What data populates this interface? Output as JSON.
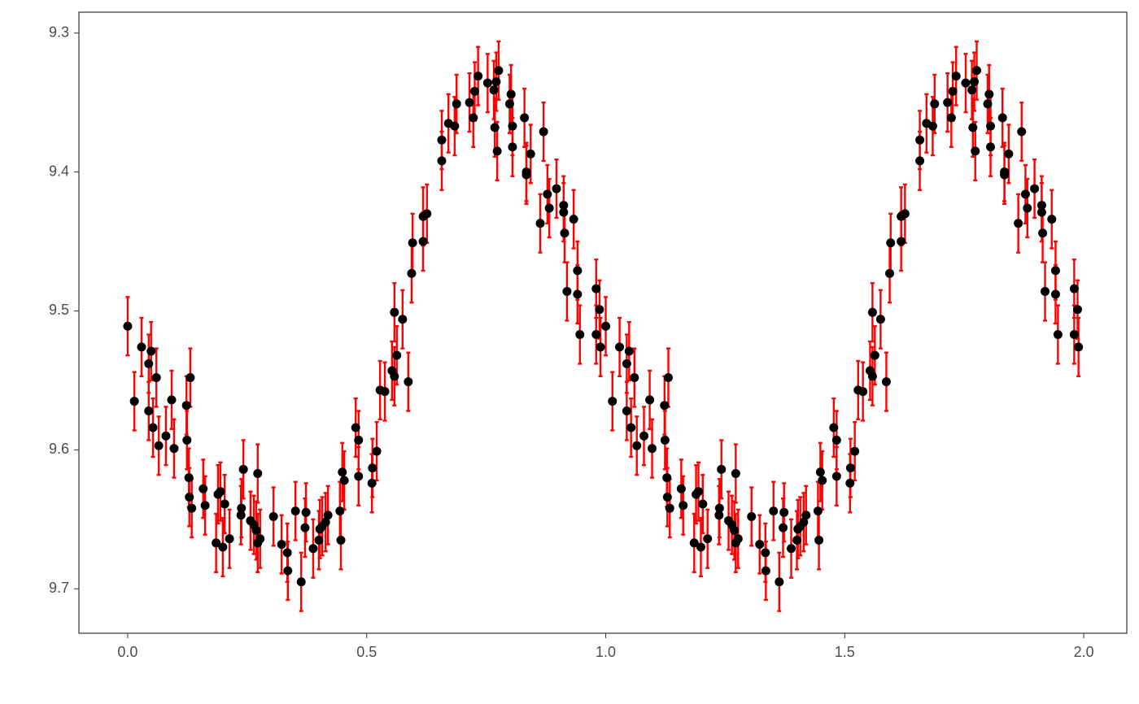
{
  "chart_data": {
    "type": "errorbar_scatter",
    "x": [
      0.0,
      0.014,
      0.029,
      0.044,
      0.044,
      0.049,
      0.053,
      0.06,
      0.065,
      0.08,
      0.092,
      0.097,
      0.123,
      0.124,
      0.128,
      0.129,
      0.131,
      0.134,
      0.158,
      0.162,
      0.185,
      0.189,
      0.194,
      0.199,
      0.203,
      0.213,
      0.237,
      0.238,
      0.242,
      0.257,
      0.264,
      0.269,
      0.272,
      0.272,
      0.277,
      0.305,
      0.322,
      0.334,
      0.335,
      0.351,
      0.363,
      0.371,
      0.373,
      0.388,
      0.4,
      0.402,
      0.407,
      0.414,
      0.419,
      0.444,
      0.446,
      0.449,
      0.453,
      0.477,
      0.483,
      0.483,
      0.511,
      0.512,
      0.521,
      0.528,
      0.538,
      0.553,
      0.558,
      0.558,
      0.563,
      0.575,
      0.587,
      0.594,
      0.596,
      0.618,
      0.618,
      0.626,
      0.657,
      0.657,
      0.671,
      0.684,
      0.688,
      0.715,
      0.723,
      0.726,
      0.733,
      0.753,
      0.766,
      0.768,
      0.771,
      0.773,
      0.776,
      0.799,
      0.802,
      0.805,
      0.805,
      0.83,
      0.834,
      0.834,
      0.843,
      0.863,
      0.87,
      0.878,
      0.882,
      0.897,
      0.912,
      0.912,
      0.914,
      0.919,
      0.933,
      0.941,
      0.941,
      0.946,
      0.98,
      0.98,
      0.987,
      0.989,
      1.0,
      1.014,
      1.029,
      1.044,
      1.044,
      1.049,
      1.053,
      1.06,
      1.065,
      1.08,
      1.092,
      1.097,
      1.123,
      1.124,
      1.128,
      1.129,
      1.131,
      1.134,
      1.158,
      1.162,
      1.185,
      1.189,
      1.194,
      1.199,
      1.203,
      1.213,
      1.237,
      1.238,
      1.242,
      1.257,
      1.264,
      1.269,
      1.272,
      1.272,
      1.277,
      1.305,
      1.322,
      1.334,
      1.335,
      1.351,
      1.363,
      1.371,
      1.373,
      1.388,
      1.4,
      1.402,
      1.407,
      1.414,
      1.419,
      1.444,
      1.446,
      1.449,
      1.453,
      1.477,
      1.483,
      1.483,
      1.511,
      1.512,
      1.521,
      1.528,
      1.538,
      1.553,
      1.558,
      1.558,
      1.563,
      1.575,
      1.587,
      1.594,
      1.596,
      1.618,
      1.618,
      1.626,
      1.657,
      1.657,
      1.671,
      1.684,
      1.688,
      1.715,
      1.723,
      1.726,
      1.733,
      1.753,
      1.766,
      1.768,
      1.771,
      1.773,
      1.776,
      1.799,
      1.802,
      1.805,
      1.805,
      1.83,
      1.834,
      1.834,
      1.843,
      1.863,
      1.87,
      1.878,
      1.882,
      1.897,
      1.912,
      1.912,
      1.914,
      1.919,
      1.933,
      1.941,
      1.941,
      1.946,
      1.98,
      1.98,
      1.987,
      1.989
    ],
    "values": [
      9.511,
      9.565,
      9.526,
      9.538,
      9.572,
      9.529,
      9.584,
      9.548,
      9.597,
      9.59,
      9.564,
      9.599,
      9.568,
      9.593,
      9.62,
      9.634,
      9.548,
      9.642,
      9.628,
      9.64,
      9.667,
      9.632,
      9.63,
      9.67,
      9.639,
      9.664,
      9.647,
      9.642,
      9.614,
      9.651,
      9.654,
      9.658,
      9.667,
      9.617,
      9.664,
      9.648,
      9.668,
      9.674,
      9.687,
      9.644,
      9.695,
      9.656,
      9.645,
      9.671,
      9.665,
      9.657,
      9.655,
      9.652,
      9.647,
      9.644,
      9.665,
      9.616,
      9.622,
      9.584,
      9.619,
      9.593,
      9.624,
      9.613,
      9.601,
      9.557,
      9.558,
      9.543,
      9.547,
      9.501,
      9.532,
      9.506,
      9.551,
      9.473,
      9.451,
      9.45,
      9.432,
      9.43,
      9.392,
      9.377,
      9.365,
      9.367,
      9.351,
      9.35,
      9.361,
      9.342,
      9.331,
      9.336,
      9.341,
      9.368,
      9.335,
      9.385,
      9.327,
      9.351,
      9.344,
      9.367,
      9.382,
      9.361,
      9.4,
      9.402,
      9.387,
      9.437,
      9.371,
      9.416,
      9.426,
      9.412,
      9.424,
      9.429,
      9.444,
      9.486,
      9.434,
      9.471,
      9.488,
      9.517,
      9.517,
      9.484,
      9.499,
      9.526,
      9.511,
      9.565,
      9.526,
      9.538,
      9.572,
      9.529,
      9.584,
      9.548,
      9.597,
      9.59,
      9.564,
      9.599,
      9.568,
      9.593,
      9.62,
      9.634,
      9.548,
      9.642,
      9.628,
      9.64,
      9.667,
      9.632,
      9.63,
      9.67,
      9.639,
      9.664,
      9.647,
      9.642,
      9.614,
      9.651,
      9.654,
      9.658,
      9.667,
      9.617,
      9.664,
      9.648,
      9.668,
      9.674,
      9.687,
      9.644,
      9.695,
      9.656,
      9.645,
      9.671,
      9.665,
      9.657,
      9.655,
      9.652,
      9.647,
      9.644,
      9.665,
      9.616,
      9.622,
      9.584,
      9.619,
      9.593,
      9.624,
      9.613,
      9.601,
      9.557,
      9.558,
      9.543,
      9.547,
      9.501,
      9.532,
      9.506,
      9.551,
      9.473,
      9.451,
      9.45,
      9.432,
      9.43,
      9.392,
      9.377,
      9.365,
      9.367,
      9.351,
      9.35,
      9.361,
      9.342,
      9.331,
      9.336,
      9.341,
      9.368,
      9.335,
      9.385,
      9.327,
      9.351,
      9.344,
      9.367,
      9.382,
      9.361,
      9.4,
      9.402,
      9.387,
      9.437,
      9.371,
      9.416,
      9.426,
      9.412,
      9.424,
      9.429,
      9.444,
      9.486,
      9.434,
      9.471,
      9.488,
      9.517,
      9.517,
      9.484,
      9.499,
      9.526
    ],
    "error": 0.021,
    "color": "#000000",
    "error_color": "#ff0000",
    "xlim": [
      -0.102,
      2.09
    ],
    "ylim": [
      9.732,
      9.285
    ],
    "xticks": [
      {
        "value": 0,
        "label": "0.0"
      },
      {
        "value": 0.5,
        "label": "0.5"
      },
      {
        "value": 1,
        "label": "1.0"
      },
      {
        "value": 1.5,
        "label": "1.5"
      },
      {
        "value": 2,
        "label": "2.0"
      }
    ],
    "yticks": [
      9.3,
      9.4,
      9.5,
      9.6,
      9.7
    ],
    "grid": false
  }
}
